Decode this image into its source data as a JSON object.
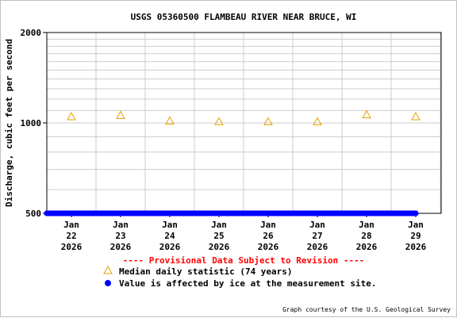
{
  "chart_data": {
    "type": "scatter",
    "title": "USGS 05360500 FLAMBEAU RIVER NEAR BRUCE, WI",
    "ylabel": "Discharge, cubic feet per second",
    "xlabel": "",
    "y_scale": "log",
    "ylim": [
      500,
      2000
    ],
    "y_ticks": [
      "500",
      "1000",
      "2000"
    ],
    "grid": true,
    "categories": [
      {
        "month": "Jan",
        "day": "22",
        "year": "2026"
      },
      {
        "month": "Jan",
        "day": "23",
        "year": "2026"
      },
      {
        "month": "Jan",
        "day": "24",
        "year": "2026"
      },
      {
        "month": "Jan",
        "day": "25",
        "year": "2026"
      },
      {
        "month": "Jan",
        "day": "26",
        "year": "2026"
      },
      {
        "month": "Jan",
        "day": "27",
        "year": "2026"
      },
      {
        "month": "Jan",
        "day": "28",
        "year": "2026"
      },
      {
        "month": "Jan",
        "day": "29",
        "year": "2026"
      }
    ],
    "series": [
      {
        "name": "Median daily statistic (74 years)",
        "marker": "triangle",
        "color": "#e8a000",
        "values": [
          1050,
          1060,
          1015,
          1010,
          1010,
          1010,
          1065,
          1050
        ]
      },
      {
        "name": "Value is affected by ice at the measurement site.",
        "marker": "dot",
        "color": "#0000ff",
        "values": [
          500,
          500,
          500,
          500,
          500,
          500,
          500,
          500
        ]
      }
    ],
    "legend_position": "bottom"
  },
  "provisional_notice": "---- Provisional Data Subject to Revision ----",
  "courtesy": "Graph courtesy of the U.S. Geological Survey",
  "colors": {
    "median": "#e8a000",
    "ice": "#0000ff",
    "provisional": "#ff0000",
    "grid": "#cccccc"
  }
}
